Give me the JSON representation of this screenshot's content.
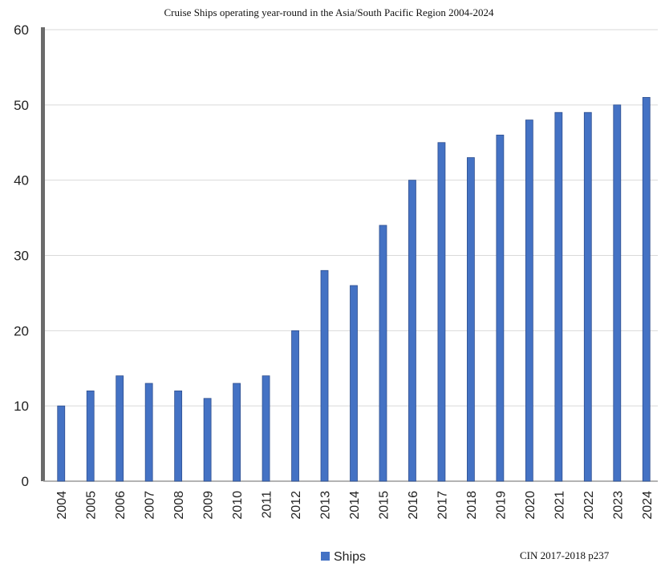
{
  "chart_data": {
    "type": "bar",
    "title": "Cruise Ships operating year-round in the Asia/South Pacific Region 2004-2024",
    "categories": [
      "2004",
      "2005",
      "2006",
      "2007",
      "2008",
      "2009",
      "2010",
      "2011",
      "2012",
      "2013",
      "2014",
      "2015",
      "2016",
      "2017",
      "2018",
      "2019",
      "2020",
      "2021",
      "2022",
      "2023",
      "2024"
    ],
    "series": [
      {
        "name": "Ships",
        "color": "#4472c4",
        "values": [
          10,
          12,
          14,
          13,
          12,
          11,
          13,
          14,
          20,
          28,
          26,
          34,
          40,
          45,
          43,
          46,
          48,
          49,
          49,
          50,
          51
        ]
      }
    ],
    "ylim": [
      0,
      60
    ],
    "yticks": [
      0,
      10,
      20,
      30,
      40,
      50,
      60
    ],
    "grid": true,
    "legend": "bottom",
    "source": "CIN 2017-2018 p237",
    "xlabel": "",
    "ylabel": ""
  }
}
